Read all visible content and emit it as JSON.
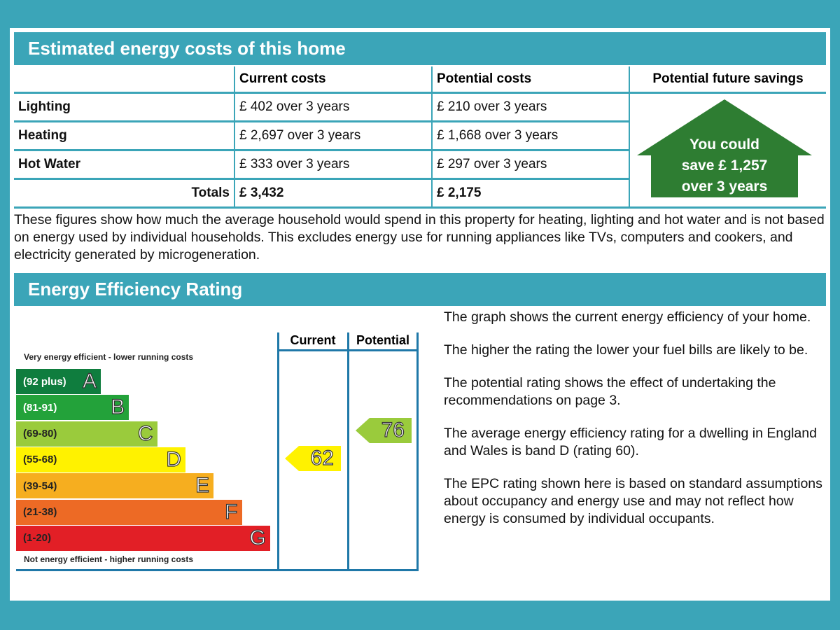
{
  "costs": {
    "title": "Estimated energy costs of this home",
    "headers": [
      "",
      "Current costs",
      "Potential costs",
      "Potential future savings"
    ],
    "rows": [
      {
        "label": "Lighting",
        "current": "£ 402 over 3 years",
        "potential": "£ 210 over 3 years"
      },
      {
        "label": "Heating",
        "current": "£ 2,697 over 3 years",
        "potential": "£ 1,668 over 3 years"
      },
      {
        "label": "Hot Water",
        "current": "£ 333 over 3 years",
        "potential": "£ 297 over 3 years"
      }
    ],
    "totals": {
      "label": "Totals",
      "current": "£ 3,432",
      "potential": "£ 2,175"
    },
    "savings": [
      "You could",
      "save £ 1,257",
      "over 3 years"
    ],
    "description": "These figures show how much the average household would spend in this property for heating, lighting and hot water and is not based on energy used by individual households. This excludes energy use for running appliances like TVs, computers and cookers, and electricity generated by microgeneration."
  },
  "rating": {
    "title": "Energy Efficiency Rating",
    "top_note": "Very energy efficient - lower running costs",
    "bottom_note": "Not energy efficient - higher running costs",
    "col_current": "Current",
    "col_potential": "Potential",
    "bands": [
      {
        "range": "(92 plus)",
        "letter": "A",
        "color": "#0f7d3e"
      },
      {
        "range": "(81-91)",
        "letter": "B",
        "color": "#23a23a"
      },
      {
        "range": "(69-80)",
        "letter": "C",
        "color": "#9acb3c"
      },
      {
        "range": "(55-68)",
        "letter": "D",
        "color": "#fff200"
      },
      {
        "range": "(39-54)",
        "letter": "E",
        "color": "#f6ae1f"
      },
      {
        "range": "(21-38)",
        "letter": "F",
        "color": "#ed6a25"
      },
      {
        "range": "(1-20)",
        "letter": "G",
        "color": "#e21f26"
      }
    ],
    "current": "62",
    "current_color": "#fff200",
    "potential": "76",
    "potential_color": "#9acb3c",
    "notes": [
      "The graph shows the current energy efficiency of your home.",
      "The higher the rating the lower your fuel bills are likely to be.",
      "The potential rating shows the effect of undertaking the recommendations on page 3.",
      "The average energy efficiency rating for a dwelling in England and Wales is band D (rating 60).",
      "The EPC rating shown here is based on standard assumptions about occupancy and energy use and may not reflect how energy is consumed by individual occupants."
    ]
  }
}
